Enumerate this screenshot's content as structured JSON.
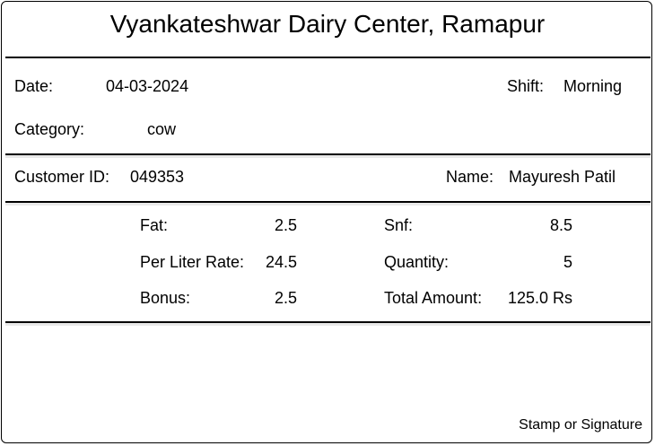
{
  "receipt": {
    "title": "Vyankateshwar Dairy Center, Ramapur",
    "date_label": "Date:",
    "date_value": "04-03-2024",
    "shift_label": "Shift:",
    "shift_value": "Morning",
    "category_label": "Category:",
    "category_value": "cow",
    "customer_id_label": "Customer ID:",
    "customer_id_value": "049353",
    "name_label": "Name:",
    "name_value": "Mayuresh Patil",
    "fat_label": "Fat:",
    "fat_value": "2.5",
    "snf_label": "Snf:",
    "snf_value": "8.5",
    "rate_label": "Per Liter Rate:",
    "rate_value": "24.5",
    "quantity_label": "Quantity:",
    "quantity_value": "5",
    "bonus_label": "Bonus:",
    "bonus_value": "2.5",
    "total_label": "Total Amount:",
    "total_value": "125.0 Rs",
    "signature_label": "Stamp or Signature"
  }
}
